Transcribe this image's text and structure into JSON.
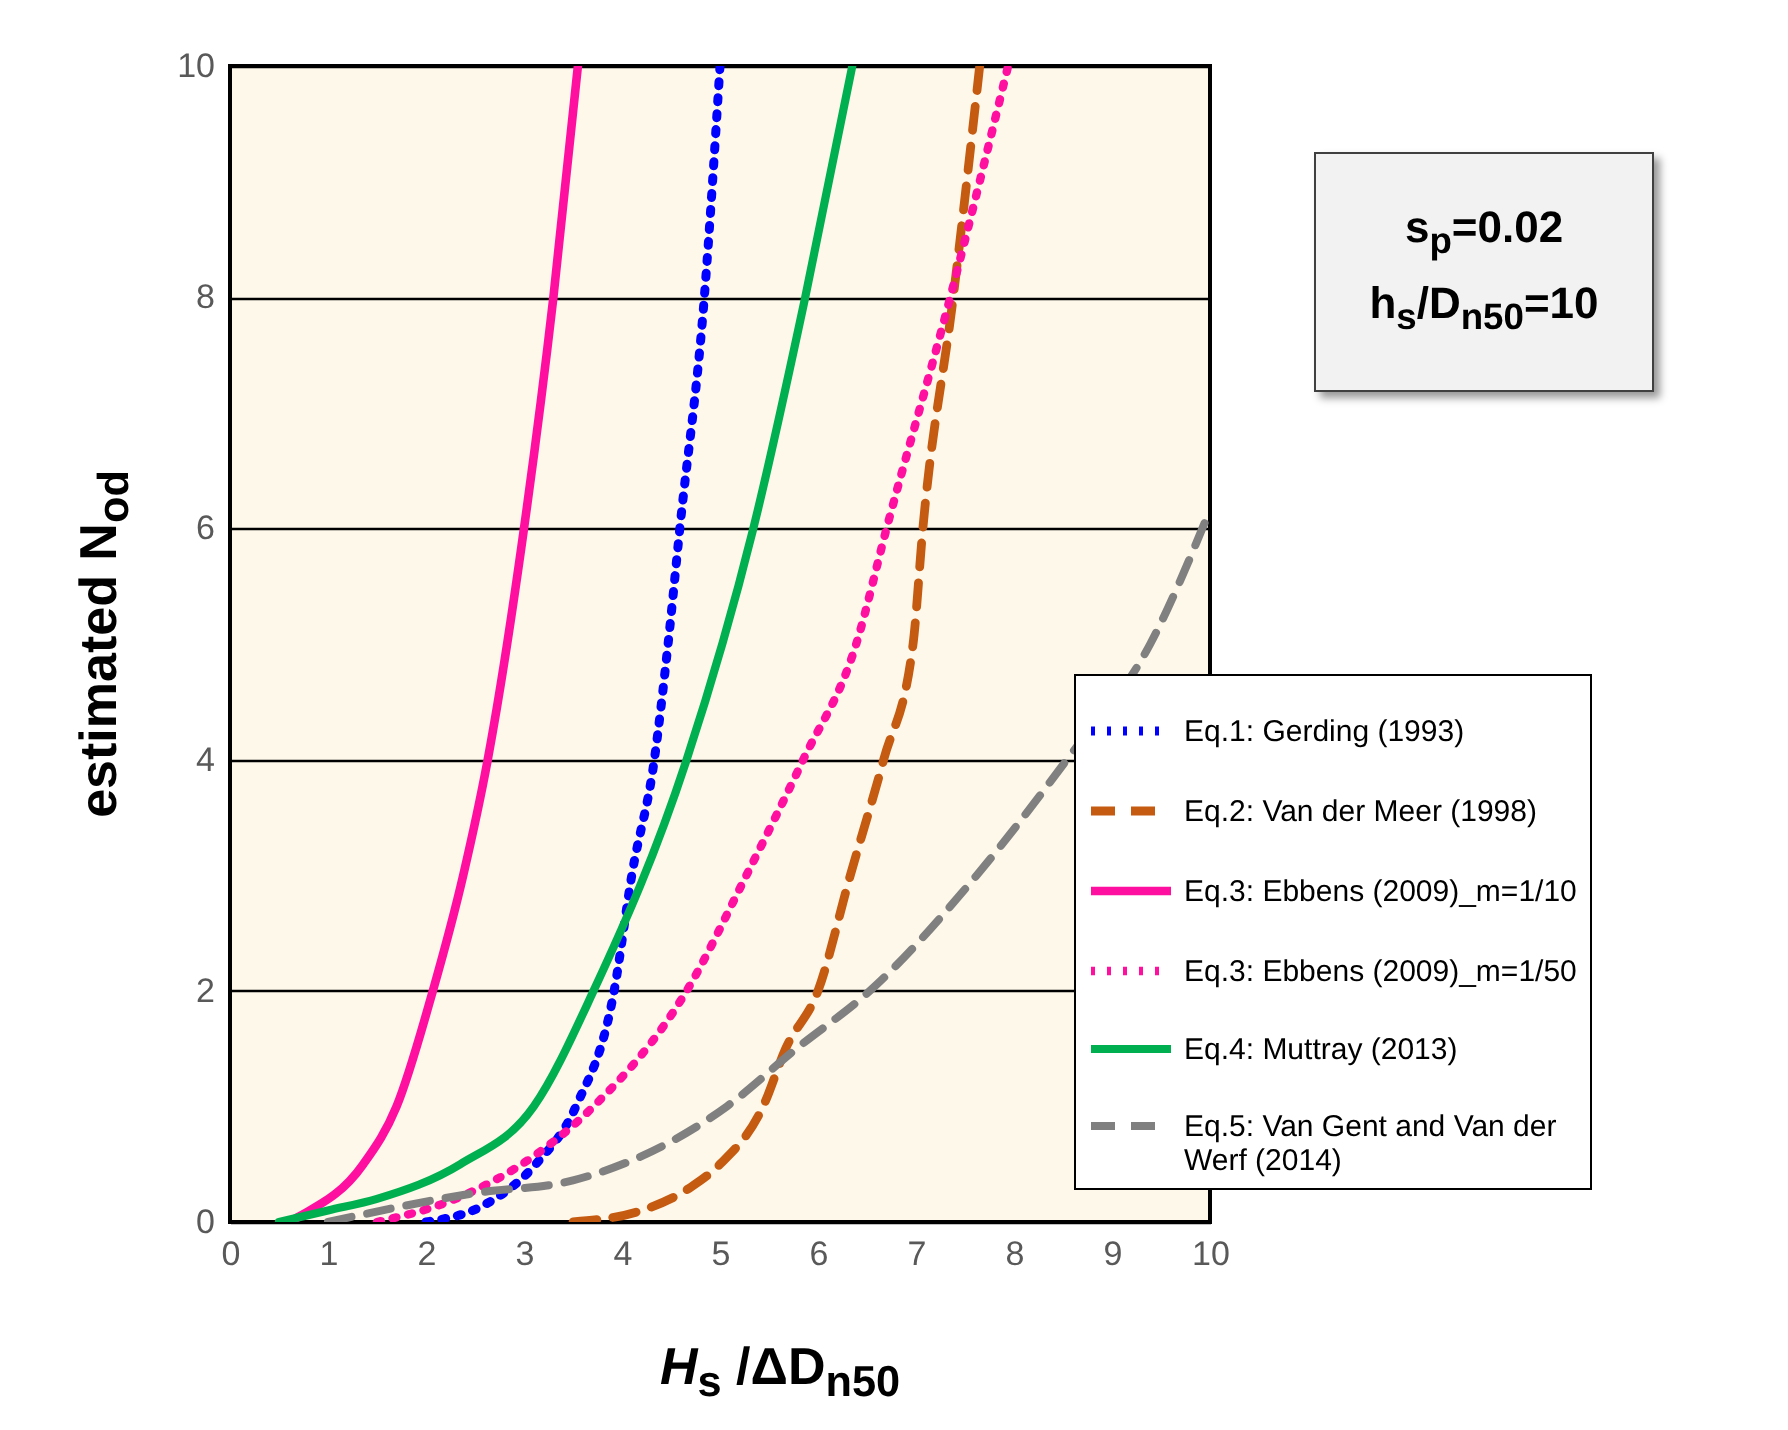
{
  "chart_data": {
    "type": "line",
    "xlabel": "H$_{s}$ /ΔD$_{n50}$",
    "ylabel": "estimated N$_{od}$",
    "annotations": [
      "s$_{p}$=0.02",
      "h$_{s}$/D$_{n50}$=10"
    ],
    "xlim": [
      0,
      10
    ],
    "xticks": [
      0,
      1,
      2,
      3,
      4,
      5,
      6,
      7,
      8,
      9,
      10
    ],
    "ylim": [
      0,
      10
    ],
    "yticks": [
      0,
      2,
      4,
      6,
      8,
      10
    ],
    "grid": "y",
    "legend": "bottom right",
    "series": [
      {
        "name": "Eq.1: Gerding (1993)",
        "color": "#0000ff",
        "line_style": "dotted",
        "x": [
          2.0,
          2.6,
          3.12,
          3.53,
          3.92,
          4.1,
          4.33,
          4.47,
          4.59,
          4.84,
          5.0
        ],
        "values": [
          0,
          0.15,
          0.5,
          1,
          2,
          3,
          4,
          5,
          6,
          8,
          10
        ]
      },
      {
        "name": "Eq.2: Van der Meer (1998)",
        "color": "#c55a11",
        "line_style": "dashed",
        "x": [
          3.5,
          4.2,
          4.7,
          5.0,
          5.44,
          5.67,
          6.0,
          6.33,
          6.67,
          6.97,
          7.07,
          7.38,
          7.65
        ],
        "values": [
          0,
          0.1,
          0.3,
          0.5,
          1,
          1.5,
          2,
          3,
          4,
          5,
          6,
          8,
          10
        ]
      },
      {
        "name": "Eq.3: Ebbens (2009)_m=1/10",
        "color": "#ff0fa0",
        "line_style": "solid",
        "x": [
          0.6,
          0.71,
          1.36,
          1.7,
          2.07,
          2.38,
          2.63,
          3.0,
          3.3,
          3.55
        ],
        "values": [
          0,
          0.05,
          0.5,
          1,
          2,
          3,
          4,
          6,
          8,
          10
        ]
      },
      {
        "name": "Eq.3: Ebbens (2009)_m=1/50",
        "color": "#ff0fa0",
        "line_style": "dotted",
        "x": [
          1.5,
          2.3,
          3.1,
          3.71,
          4.66,
          5.27,
          5.85,
          6.39,
          6.7,
          7.35,
          7.94
        ],
        "values": [
          0,
          0.2,
          0.57,
          1,
          2,
          3,
          4,
          5,
          6,
          8,
          10
        ]
      },
      {
        "name": "Eq.4: Muttray (2013)",
        "color": "#00b050",
        "line_style": "solid",
        "x": [
          0.5,
          1.0,
          1.5,
          2.35,
          3.1,
          3.71,
          4.66,
          5.34,
          5.87,
          6.35
        ],
        "values": [
          0,
          0.1,
          0.2,
          0.5,
          1,
          2,
          4,
          6,
          8,
          10
        ]
      },
      {
        "name": "Eq.5: Van Gent and Van der Werf (2014)",
        "color": "#808080",
        "line_style": "dashed",
        "x": [
          1.0,
          2.5,
          3.5,
          5.07,
          5.78,
          6.53,
          7.62,
          8.54,
          9.39,
          10
        ],
        "values": [
          0,
          0.25,
          0.36,
          1,
          1.5,
          2,
          3,
          4,
          5,
          6.16
        ]
      }
    ]
  }
}
